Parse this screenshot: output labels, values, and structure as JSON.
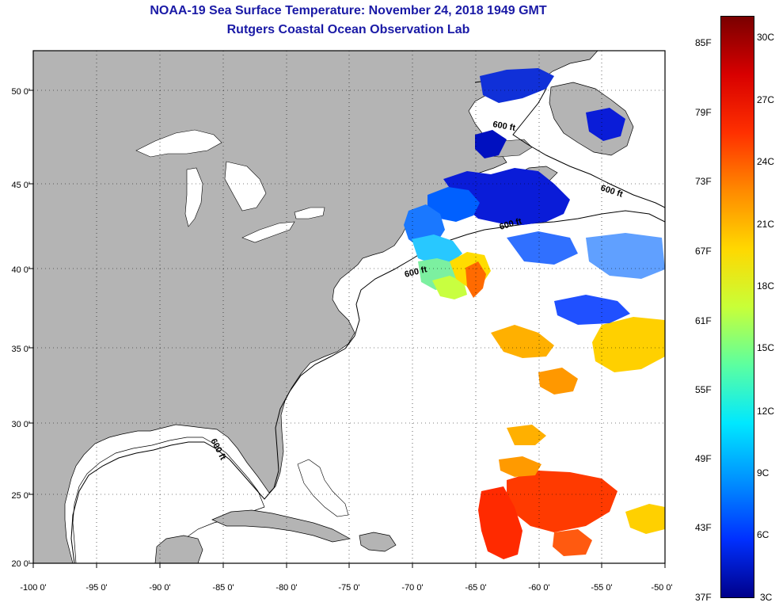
{
  "title": "NOAA-19 Sea Surface Temperature:  November 24, 2018 1949 GMT",
  "subtitle": "Rutgers Coastal Ocean Observation Lab",
  "lon_ticks": [
    "-100 0'",
    "-95 0'",
    "-90 0'",
    "-85 0'",
    "-80 0'",
    "-75 0'",
    "-70 0'",
    "-65 0'",
    "-60 0'",
    "-55 0'",
    "-50 0'"
  ],
  "lat_ticks": [
    "50 0'",
    "45 0'",
    "40 0'",
    "35 0'",
    "30 0'",
    "25 0'",
    "20 0'"
  ],
  "depth_contour_labels": [
    "600 ft",
    "600 ft",
    "600 ft",
    "600 ft",
    "600 ft"
  ],
  "colorbar": {
    "fahrenheit_labels": [
      "85F",
      "79F",
      "73F",
      "67F",
      "61F",
      "55F",
      "49F",
      "43F",
      "37F"
    ],
    "celsius_labels": [
      "30C",
      "27C",
      "24C",
      "21C",
      "18C",
      "15C",
      "12C",
      "9C",
      "6C",
      "3C"
    ],
    "colors": [
      "#7a0000",
      "#d80000",
      "#ff3000",
      "#ff8a00",
      "#ffd800",
      "#c8ff38",
      "#5cffa0",
      "#00e8ff",
      "#0090ff",
      "#0030ff",
      "#00008a"
    ]
  },
  "colors": {
    "land": "#b4b4b4",
    "ocean": "#ffffff",
    "title": "#1a1aa6"
  }
}
